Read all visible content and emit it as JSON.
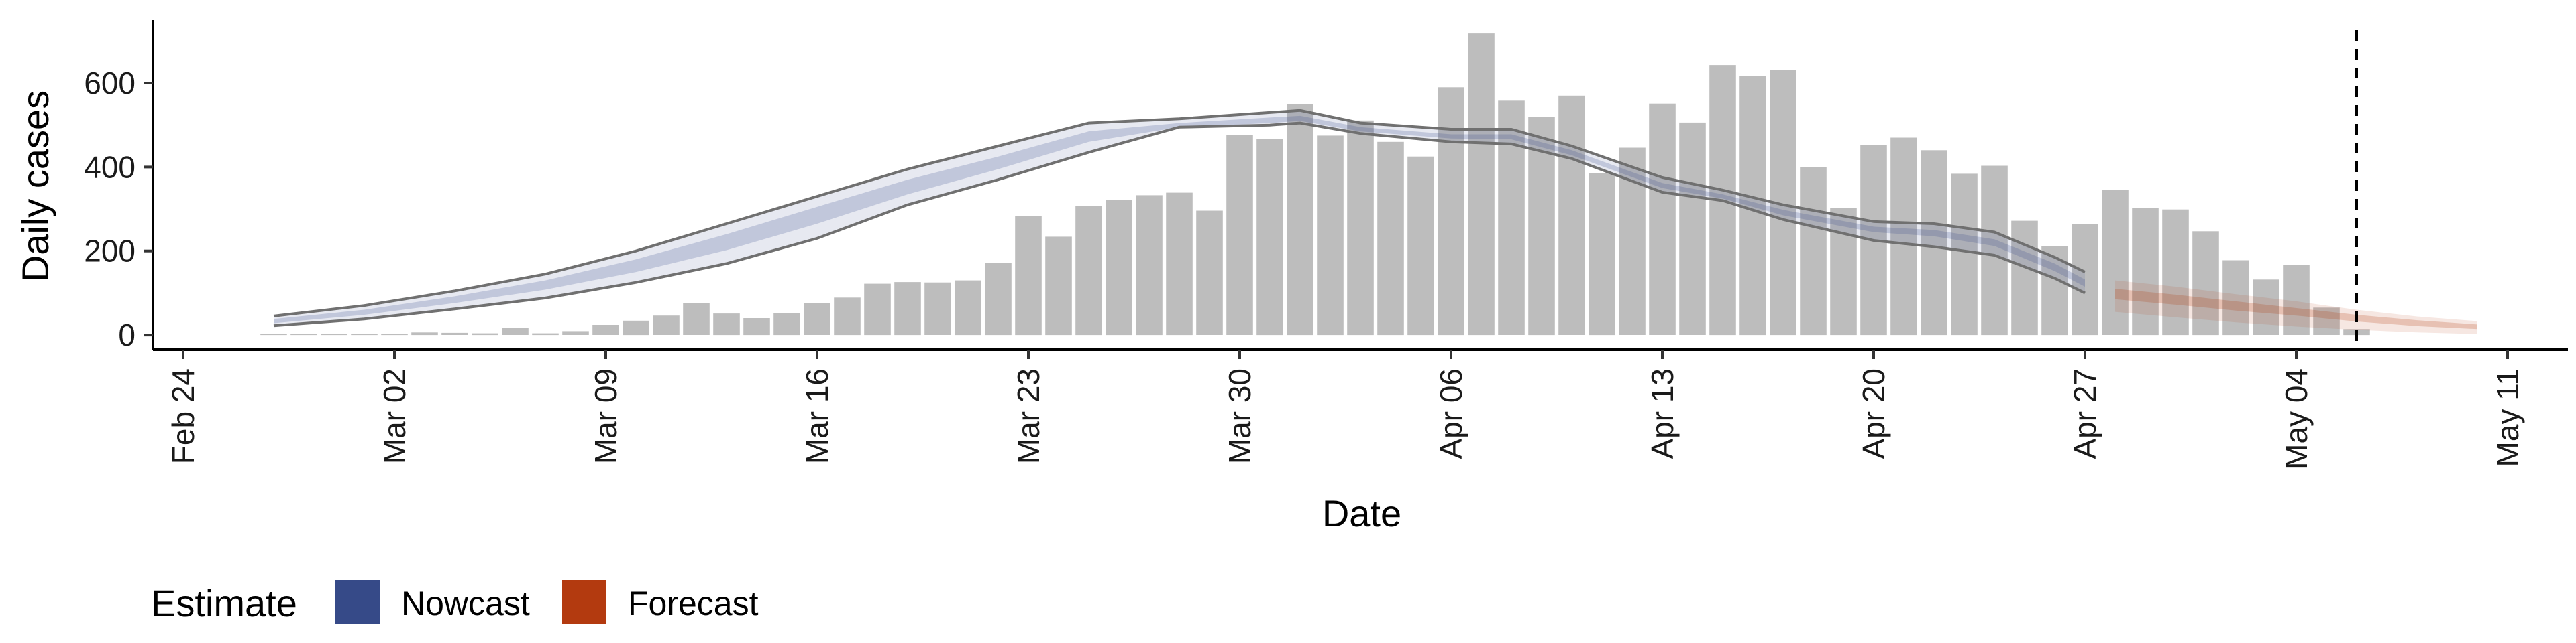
{
  "chart_data": {
    "type": "bar",
    "xlabel": "Date",
    "ylabel": "Daily cases",
    "ylim": [
      -35,
      750
    ],
    "yticks": [
      0,
      200,
      400,
      600
    ],
    "xticks": [
      "Feb 24",
      "Mar 02",
      "Mar 09",
      "Mar 16",
      "Mar 23",
      "Mar 30",
      "Apr 06",
      "Apr 13",
      "Apr 20",
      "Apr 27",
      "May 04",
      "May 11"
    ],
    "xlim_days": [
      -1,
      79
    ],
    "day_zero": "2020-02-24",
    "bar_color": "#bdbdbd",
    "grid": false,
    "reference_line": {
      "date": "May 06",
      "style": "dashed"
    },
    "bars": [
      {
        "date": "Feb 27",
        "value": 2
      },
      {
        "date": "Feb 28",
        "value": 0
      },
      {
        "date": "Feb 29",
        "value": 0
      },
      {
        "date": "Mar 01",
        "value": 3
      },
      {
        "date": "Mar 02",
        "value": 0
      },
      {
        "date": "Mar 03",
        "value": 6
      },
      {
        "date": "Mar 04",
        "value": 5
      },
      {
        "date": "Mar 05",
        "value": 4
      },
      {
        "date": "Mar 06",
        "value": 16
      },
      {
        "date": "Mar 07",
        "value": 4
      },
      {
        "date": "Mar 08",
        "value": 9
      },
      {
        "date": "Mar 09",
        "value": 24
      },
      {
        "date": "Mar 10",
        "value": 34
      },
      {
        "date": "Mar 11",
        "value": 46
      },
      {
        "date": "Mar 12",
        "value": 76
      },
      {
        "date": "Mar 13",
        "value": 51
      },
      {
        "date": "Mar 14",
        "value": 40
      },
      {
        "date": "Mar 15",
        "value": 52
      },
      {
        "date": "Mar 16",
        "value": 76
      },
      {
        "date": "Mar 17",
        "value": 89
      },
      {
        "date": "Mar 18",
        "value": 122
      },
      {
        "date": "Mar 19",
        "value": 126
      },
      {
        "date": "Mar 20",
        "value": 125
      },
      {
        "date": "Mar 21",
        "value": 130
      },
      {
        "date": "Mar 22",
        "value": 172
      },
      {
        "date": "Mar 23",
        "value": 283
      },
      {
        "date": "Mar 24",
        "value": 234
      },
      {
        "date": "Mar 25",
        "value": 307
      },
      {
        "date": "Mar 26",
        "value": 321
      },
      {
        "date": "Mar 27",
        "value": 333
      },
      {
        "date": "Mar 28",
        "value": 339
      },
      {
        "date": "Mar 29",
        "value": 296
      },
      {
        "date": "Mar 30",
        "value": 476
      },
      {
        "date": "Mar 31",
        "value": 467
      },
      {
        "date": "Apr 01",
        "value": 549
      },
      {
        "date": "Apr 02",
        "value": 475
      },
      {
        "date": "Apr 03",
        "value": 511
      },
      {
        "date": "Apr 04",
        "value": 460
      },
      {
        "date": "Apr 05",
        "value": 425
      },
      {
        "date": "Apr 06",
        "value": 590
      },
      {
        "date": "Apr 07",
        "value": 718
      },
      {
        "date": "Apr 08",
        "value": 558
      },
      {
        "date": "Apr 09",
        "value": 520
      },
      {
        "date": "Apr 10",
        "value": 570
      },
      {
        "date": "Apr 11",
        "value": 385
      },
      {
        "date": "Apr 12",
        "value": 446
      },
      {
        "date": "Apr 13",
        "value": 551
      },
      {
        "date": "Apr 14",
        "value": 506
      },
      {
        "date": "Apr 15",
        "value": 643
      },
      {
        "date": "Apr 16",
        "value": 616
      },
      {
        "date": "Apr 17",
        "value": 631
      },
      {
        "date": "Apr 18",
        "value": 399
      },
      {
        "date": "Apr 19",
        "value": 302
      },
      {
        "date": "Apr 20",
        "value": 452
      },
      {
        "date": "Apr 21",
        "value": 470
      },
      {
        "date": "Apr 22",
        "value": 440
      },
      {
        "date": "Apr 23",
        "value": 384
      },
      {
        "date": "Apr 24",
        "value": 403
      },
      {
        "date": "Apr 25",
        "value": 272
      },
      {
        "date": "Apr 26",
        "value": 212
      },
      {
        "date": "Apr 27",
        "value": 265
      },
      {
        "date": "Apr 28",
        "value": 345
      },
      {
        "date": "Apr 29",
        "value": 302
      },
      {
        "date": "Apr 30",
        "value": 299
      },
      {
        "date": "May 01",
        "value": 247
      },
      {
        "date": "May 02",
        "value": 178
      },
      {
        "date": "May 03",
        "value": 132
      },
      {
        "date": "May 04",
        "value": 166
      },
      {
        "date": "May 05",
        "value": 65
      },
      {
        "date": "May 06",
        "value": 14
      }
    ],
    "nowcast": {
      "color": "#3b4c8c",
      "line_color": "#707070",
      "dates": [
        "Feb 27",
        "Mar 01",
        "Mar 04",
        "Mar 07",
        "Mar 10",
        "Mar 13",
        "Mar 16",
        "Mar 19",
        "Mar 22",
        "Mar 25",
        "Mar 28",
        "Mar 31",
        "Apr 01",
        "Apr 03",
        "Apr 06",
        "Apr 08",
        "Apr 10",
        "Apr 13",
        "Apr 15",
        "Apr 17",
        "Apr 20",
        "Apr 22",
        "Apr 24",
        "Apr 26",
        "Apr 27"
      ],
      "upper": [
        45,
        70,
        105,
        145,
        200,
        265,
        330,
        395,
        450,
        505,
        515,
        530,
        535,
        505,
        490,
        490,
        450,
        375,
        345,
        310,
        270,
        265,
        245,
        185,
        150
      ],
      "inner_upper": [
        38,
        60,
        92,
        130,
        180,
        240,
        305,
        370,
        425,
        485,
        505,
        518,
        522,
        495,
        478,
        478,
        440,
        362,
        335,
        298,
        258,
        250,
        228,
        170,
        132
      ],
      "inner_lower": [
        28,
        48,
        76,
        108,
        150,
        202,
        265,
        335,
        395,
        460,
        495,
        505,
        510,
        485,
        468,
        466,
        428,
        350,
        325,
        285,
        245,
        235,
        212,
        152,
        115
      ],
      "lower": [
        22,
        38,
        62,
        88,
        125,
        170,
        230,
        310,
        370,
        435,
        495,
        500,
        505,
        480,
        460,
        455,
        420,
        340,
        320,
        275,
        225,
        210,
        190,
        135,
        100
      ]
    },
    "forecast": {
      "color": "#b33a0f",
      "dates": [
        "Apr 28",
        "Apr 30",
        "May 02",
        "May 04",
        "May 06",
        "May 08",
        "May 10"
      ],
      "outer_upper": [
        130,
        115,
        97,
        80,
        60,
        44,
        33
      ],
      "inner_upper": [
        110,
        96,
        80,
        64,
        48,
        35,
        25
      ],
      "inner_lower": [
        85,
        72,
        58,
        46,
        32,
        21,
        14
      ],
      "outer_lower": [
        55,
        42,
        30,
        20,
        12,
        6,
        2
      ]
    },
    "legend": {
      "title": "Estimate",
      "position": "bottom-left",
      "items": [
        {
          "label": "Nowcast",
          "color": "#364a88"
        },
        {
          "label": "Forecast",
          "color": "#b33a0f"
        }
      ]
    }
  }
}
